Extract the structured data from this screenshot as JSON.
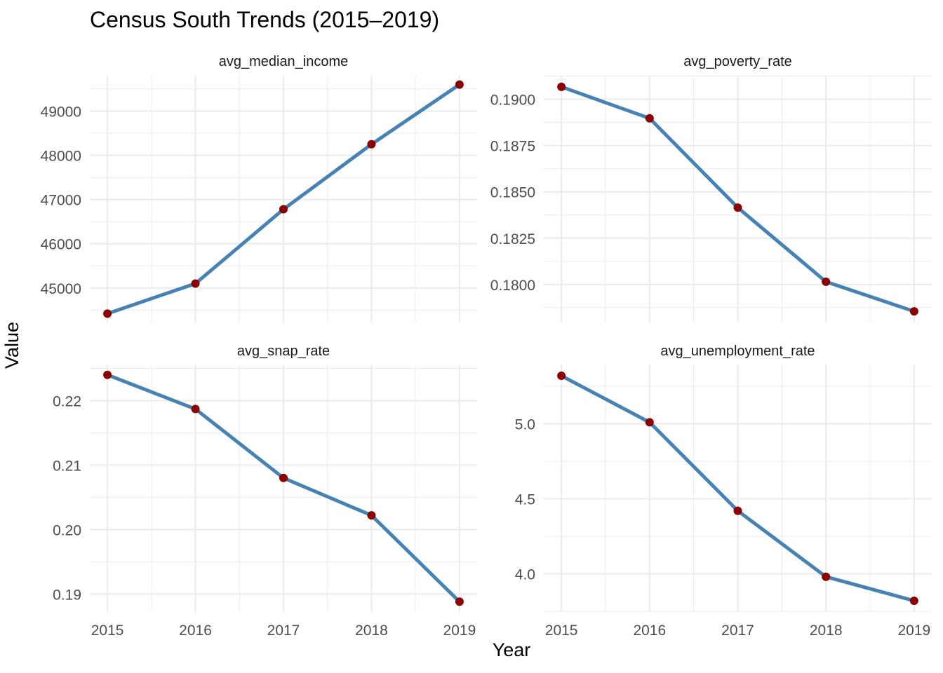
{
  "title": "Census South Trends (2015–2019)",
  "xlabel": "Year",
  "ylabel": "Value",
  "colors": {
    "line": "#4682B4",
    "point": "#8B0000",
    "grid": "#EBEBEB",
    "tick_text": "#4D4D4D"
  },
  "chart_data": [
    {
      "type": "line",
      "panel": "avg_median_income",
      "x": [
        2015,
        2016,
        2017,
        2018,
        2019
      ],
      "values": [
        44420,
        45100,
        46780,
        48250,
        49600
      ],
      "yticks": [
        45000,
        46000,
        47000,
        48000,
        49000
      ],
      "ytick_labels": [
        "45000",
        "46000",
        "47000",
        "48000",
        "49000"
      ],
      "ylim": [
        44220,
        49800
      ],
      "show_x_labels": false
    },
    {
      "type": "line",
      "panel": "avg_poverty_rate",
      "x": [
        2015,
        2016,
        2017,
        2018,
        2019
      ],
      "values": [
        0.19067,
        0.18897,
        0.18415,
        0.18015,
        0.17855
      ],
      "yticks": [
        0.18,
        0.1825,
        0.185,
        0.1875,
        0.19
      ],
      "ytick_labels": [
        "0.1800",
        "0.1825",
        "0.1850",
        "0.1875",
        "0.1900"
      ],
      "ylim": [
        0.17795,
        0.19127
      ],
      "show_x_labels": false
    },
    {
      "type": "line",
      "panel": "avg_snap_rate",
      "x": [
        2015,
        2016,
        2017,
        2018,
        2019
      ],
      "values": [
        0.224,
        0.2187,
        0.208,
        0.2022,
        0.1888
      ],
      "yticks": [
        0.19,
        0.2,
        0.21,
        0.22
      ],
      "ytick_labels": [
        "0.19",
        "0.20",
        "0.21",
        "0.22"
      ],
      "ylim": [
        0.1872,
        0.2256
      ],
      "show_x_labels": true
    },
    {
      "type": "line",
      "panel": "avg_unemployment_rate",
      "x": [
        2015,
        2016,
        2017,
        2018,
        2019
      ],
      "values": [
        5.32,
        5.01,
        4.42,
        3.98,
        3.82
      ],
      "yticks": [
        4.0,
        4.5,
        5.0
      ],
      "ytick_labels": [
        "4.0",
        "4.5",
        "5.0"
      ],
      "ylim": [
        3.745,
        5.395
      ],
      "show_x_labels": true
    }
  ],
  "xtick_labels": [
    "2015",
    "2016",
    "2017",
    "2018",
    "2019"
  ]
}
